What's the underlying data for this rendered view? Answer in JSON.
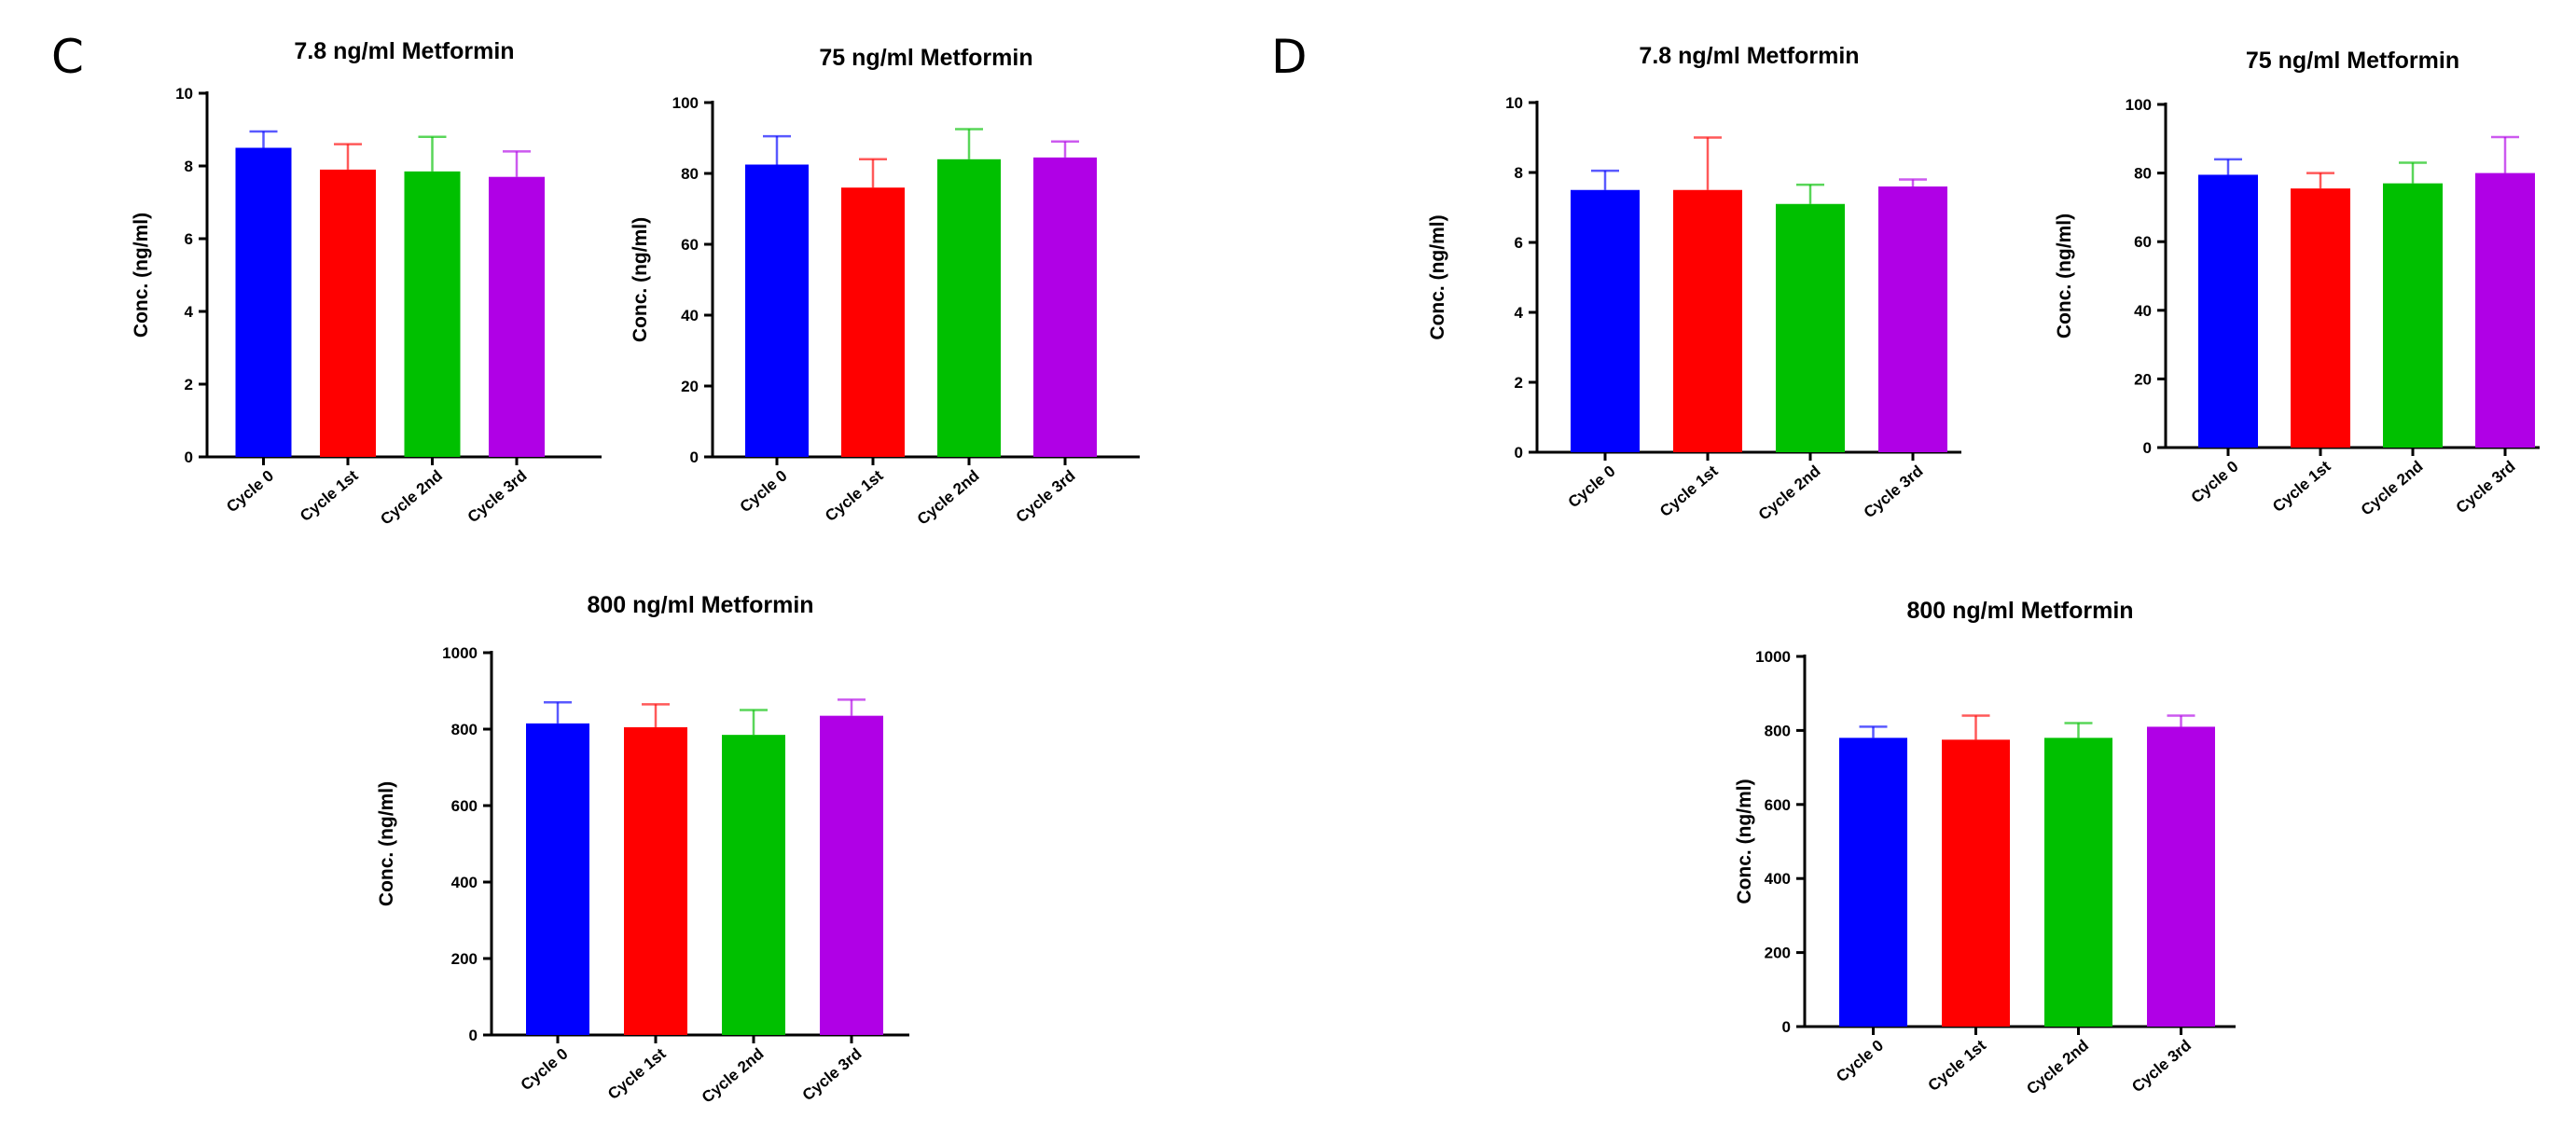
{
  "panels": [
    {
      "letter": "C"
    },
    {
      "letter": "D"
    }
  ],
  "colors": [
    "#0000ff",
    "#ff0000",
    "#00c000",
    "#b000e6"
  ],
  "chart_data": [
    {
      "panel": "C",
      "type": "bar",
      "title": "7.8 ng/ml Metformin",
      "ylabel": "Conc. (ng/ml)",
      "categories": [
        "Cycle 0",
        "Cycle 1st",
        "Cycle 2nd",
        "Cycle 3rd"
      ],
      "values": [
        8.5,
        7.9,
        7.85,
        7.7
      ],
      "errors": [
        0.45,
        0.7,
        0.95,
        0.7
      ],
      "ylim": [
        0,
        10
      ],
      "yticks": [
        0,
        2,
        4,
        6,
        8,
        10
      ],
      "yticklabels": [
        "0",
        "2",
        "4",
        "6",
        "8",
        "10"
      ]
    },
    {
      "panel": "C",
      "type": "bar",
      "title": "75 ng/ml Metformin",
      "ylabel": "Conc. (ng/ml)",
      "categories": [
        "Cycle 0",
        "Cycle 1st",
        "Cycle 2nd",
        "Cycle 3rd"
      ],
      "values": [
        82.5,
        76,
        84,
        84.5
      ],
      "errors": [
        8,
        8,
        8.5,
        4.5
      ],
      "ylim": [
        0,
        100
      ],
      "yticks": [
        0,
        20,
        40,
        60,
        80,
        100
      ],
      "yticklabels": [
        "0",
        "20",
        "40",
        "60",
        "80",
        "100"
      ]
    },
    {
      "panel": "C",
      "type": "bar",
      "title": "800 ng/ml Metformin",
      "ylabel": "Conc. (ng/ml)",
      "categories": [
        "Cycle 0",
        "Cycle 1st",
        "Cycle 2nd",
        "Cycle 3rd"
      ],
      "values": [
        815,
        805,
        785,
        835
      ],
      "errors": [
        55,
        60,
        65,
        42
      ],
      "ylim": [
        0,
        1000
      ],
      "yticks": [
        0,
        200,
        400,
        600,
        800,
        1000
      ],
      "yticklabels": [
        "0",
        "200",
        "400",
        "600",
        "800",
        "1000"
      ]
    },
    {
      "panel": "D",
      "type": "bar",
      "title": "7.8 ng/ml Metformin",
      "ylabel": "Conc. (ng/ml)",
      "categories": [
        "Cycle 0",
        "Cycle 1st",
        "Cycle 2nd",
        "Cycle 3rd"
      ],
      "values": [
        7.5,
        7.5,
        7.1,
        7.6
      ],
      "errors": [
        0.55,
        1.5,
        0.55,
        0.2
      ],
      "ylim": [
        0,
        10
      ],
      "yticks": [
        0,
        2,
        4,
        6,
        8,
        10
      ],
      "yticklabels": [
        "0",
        "2",
        "4",
        "6",
        "8",
        "10"
      ]
    },
    {
      "panel": "D",
      "type": "bar",
      "title": "75 ng/ml Metformin",
      "ylabel": "Conc. (ng/ml)",
      "categories": [
        "Cycle 0",
        "Cycle 1st",
        "Cycle 2nd",
        "Cycle 3rd"
      ],
      "values": [
        79.5,
        75.5,
        77,
        80
      ],
      "errors": [
        4.5,
        4.5,
        6,
        10.5
      ],
      "ylim": [
        0,
        100
      ],
      "yticks": [
        0,
        20,
        40,
        60,
        80,
        100
      ],
      "yticklabels": [
        "0",
        "20",
        "40",
        "60",
        "80",
        "100"
      ]
    },
    {
      "panel": "D",
      "type": "bar",
      "title": "800 ng/ml Metformin",
      "ylabel": "Conc. (ng/ml)",
      "categories": [
        "Cycle 0",
        "Cycle 1st",
        "Cycle 2nd",
        "Cycle 3rd"
      ],
      "values": [
        780,
        775,
        780,
        810
      ],
      "errors": [
        30,
        65,
        40,
        30
      ],
      "ylim": [
        0,
        1000
      ],
      "yticks": [
        0,
        200,
        400,
        600,
        800,
        1000
      ],
      "yticklabels": [
        "0",
        "200",
        "400",
        "600",
        "800",
        "1000"
      ]
    }
  ]
}
